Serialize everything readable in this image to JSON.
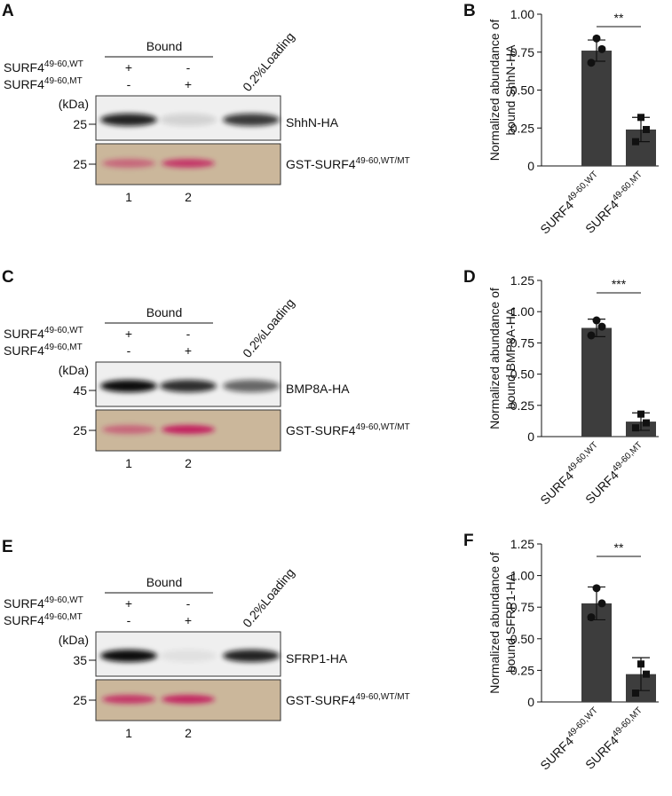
{
  "blots": [
    {
      "panel": "A",
      "group_label": "Bound",
      "rows": [
        {
          "base": "SURF4",
          "sup": "49-60,WT",
          "signs": [
            "+",
            "-"
          ]
        },
        {
          "base": "SURF4",
          "sup": "49-60,MT",
          "signs": [
            "-",
            "+"
          ]
        }
      ],
      "loading_label": "0.2%Loading",
      "unit": "(kDa)",
      "top": {
        "marker": "25",
        "label": "ShhN-HA"
      },
      "bottom": {
        "marker": "25",
        "base": "GST-SURF4",
        "sup": "49-60,WT/MT"
      },
      "lanes": [
        "1",
        "2"
      ]
    },
    {
      "panel": "C",
      "group_label": "Bound",
      "rows": [
        {
          "base": "SURF4",
          "sup": "49-60,WT",
          "signs": [
            "+",
            "-"
          ]
        },
        {
          "base": "SURF4",
          "sup": "49-60,MT",
          "signs": [
            "-",
            "+"
          ]
        }
      ],
      "loading_label": "0.2%Loading",
      "unit": "(kDa)",
      "top": {
        "marker": "45",
        "label": "BMP8A-HA"
      },
      "bottom": {
        "marker": "25",
        "base": "GST-SURF4",
        "sup": "49-60,WT/MT"
      },
      "lanes": [
        "1",
        "2"
      ]
    },
    {
      "panel": "E",
      "group_label": "Bound",
      "rows": [
        {
          "base": "SURF4",
          "sup": "49-60,WT",
          "signs": [
            "+",
            "-"
          ]
        },
        {
          "base": "SURF4",
          "sup": "49-60,MT",
          "signs": [
            "-",
            "+"
          ]
        }
      ],
      "loading_label": "0.2%Loading",
      "unit": "(kDa)",
      "top": {
        "marker": "35",
        "label": "SFRP1-HA"
      },
      "bottom": {
        "marker": "25",
        "base": "GST-SURF4",
        "sup": "49-60,WT/MT"
      },
      "lanes": [
        "1",
        "2"
      ]
    }
  ],
  "chart_data": [
    {
      "type": "bar",
      "panel": "B",
      "ylabel": [
        "Normalized abundance of",
        "bound ShhN-HA"
      ],
      "categories": [
        {
          "base": "SURF4",
          "sup": "49-60,WT"
        },
        {
          "base": "SURF4",
          "sup": "49-60,MT"
        }
      ],
      "values": [
        0.76,
        0.24
      ],
      "errors": [
        0.07,
        0.08
      ],
      "points": [
        [
          0.84,
          0.77,
          0.68
        ],
        [
          0.32,
          0.24,
          0.16
        ]
      ],
      "annotation": "**",
      "color": "#3d3d3d",
      "point_color": "#111111",
      "ylim": [
        0,
        1
      ],
      "yticks": [
        0,
        0.25,
        {
          "value": 0.5,
          "label": "0.50"
        },
        0.75,
        {
          "value": 1,
          "label": "1.00"
        }
      ]
    },
    {
      "type": "bar",
      "panel": "D",
      "ylabel": [
        "Normalized abundance of",
        "bound BMP8A-HA"
      ],
      "categories": [
        {
          "base": "SURF4",
          "sup": "49-60,WT"
        },
        {
          "base": "SURF4",
          "sup": "49-60,MT"
        }
      ],
      "values": [
        0.87,
        0.12
      ],
      "errors": [
        0.07,
        0.07
      ],
      "points": [
        [
          0.93,
          0.88,
          0.81
        ],
        [
          0.18,
          0.11,
          0.07
        ]
      ],
      "annotation": "***",
      "color": "#3d3d3d",
      "point_color": "#111111",
      "ylim": [
        0,
        1.25
      ],
      "yticks": [
        0,
        0.25,
        {
          "value": 0.5,
          "label": "0.50"
        },
        0.75,
        {
          "value": 1,
          "label": "1.00"
        },
        1.25
      ]
    },
    {
      "type": "bar",
      "panel": "F",
      "ylabel": [
        "Normalized abundance of",
        "bound SFRP1-HA"
      ],
      "categories": [
        {
          "base": "SURF4",
          "sup": "49-60,WT"
        },
        {
          "base": "SURF4",
          "sup": "49-60,MT"
        }
      ],
      "values": [
        0.78,
        0.22
      ],
      "errors": [
        0.13,
        0.13
      ],
      "points": [
        [
          0.9,
          0.78,
          0.67
        ],
        [
          0.3,
          0.22,
          0.07
        ]
      ],
      "annotation": "**",
      "color": "#3d3d3d",
      "point_color": "#111111",
      "ylim": [
        0,
        1.25
      ],
      "yticks": [
        0,
        0.25,
        {
          "value": 0.5,
          "label": "0.50"
        },
        0.75,
        {
          "value": 1,
          "label": "1.00"
        },
        1.25
      ]
    }
  ]
}
